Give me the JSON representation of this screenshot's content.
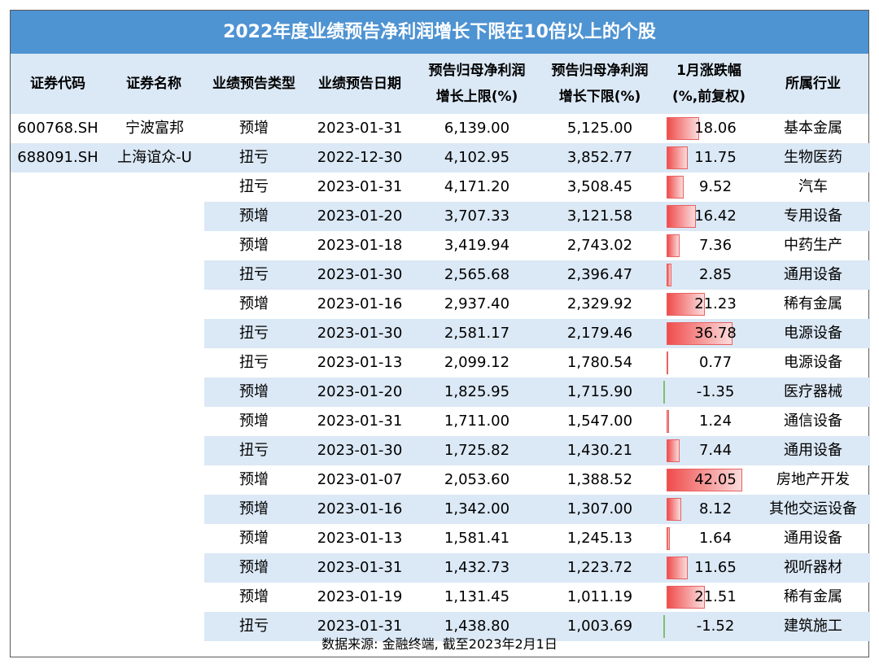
{
  "title": "2022年度业绩预告净利润增长下限在10倍以上的个股",
  "headers": {
    "code": "证券代码",
    "name": "证券名称",
    "type": "业绩预告类型",
    "date": "业绩预告日期",
    "upper_line1": "预告归母净利润",
    "upper_line2": "增长上限(%)",
    "lower_line1": "预告归母净利润",
    "lower_line2": "增长下限(%)",
    "change_line1": "1月涨跌幅",
    "change_line2": "(%,前复权)",
    "industry": "所属行业"
  },
  "rows": [
    {
      "code": "600768.SH",
      "name": "宁波富邦",
      "type": "预增",
      "date": "2023-01-31",
      "upper": "6,139.00",
      "lower": "5,125.00",
      "change": "18.06",
      "change_value": 18.06,
      "industry": "基本金属"
    },
    {
      "code": "688091.SH",
      "name": "上海谊众-U",
      "type": "扭亏",
      "date": "2022-12-30",
      "upper": "4,102.95",
      "lower": "3,852.77",
      "change": "11.75",
      "change_value": 11.75,
      "industry": "生物医药"
    },
    {
      "code": "",
      "name": "",
      "type": "扭亏",
      "date": "2023-01-31",
      "upper": "4,171.20",
      "lower": "3,508.45",
      "change": "9.52",
      "change_value": 9.52,
      "industry": "汽车"
    },
    {
      "code": "",
      "name": "",
      "type": "预增",
      "date": "2023-01-20",
      "upper": "3,707.33",
      "lower": "3,121.58",
      "change": "16.42",
      "change_value": 16.42,
      "industry": "专用设备"
    },
    {
      "code": "",
      "name": "",
      "type": "预增",
      "date": "2023-01-18",
      "upper": "3,419.94",
      "lower": "2,743.02",
      "change": "7.36",
      "change_value": 7.36,
      "industry": "中药生产"
    },
    {
      "code": "",
      "name": "",
      "type": "扭亏",
      "date": "2023-01-30",
      "upper": "2,565.68",
      "lower": "2,396.47",
      "change": "2.85",
      "change_value": 2.85,
      "industry": "通用设备"
    },
    {
      "code": "",
      "name": "",
      "type": "预增",
      "date": "2023-01-16",
      "upper": "2,937.40",
      "lower": "2,329.92",
      "change": "21.23",
      "change_value": 21.23,
      "industry": "稀有金属"
    },
    {
      "code": "",
      "name": "",
      "type": "扭亏",
      "date": "2023-01-30",
      "upper": "2,581.17",
      "lower": "2,179.46",
      "change": "36.78",
      "change_value": 36.78,
      "industry": "电源设备"
    },
    {
      "code": "",
      "name": "",
      "type": "扭亏",
      "date": "2023-01-13",
      "upper": "2,099.12",
      "lower": "1,780.54",
      "change": "0.77",
      "change_value": 0.77,
      "industry": "电源设备"
    },
    {
      "code": "",
      "name": "",
      "type": "预增",
      "date": "2023-01-20",
      "upper": "1,825.95",
      "lower": "1,715.90",
      "change": "-1.35",
      "change_value": -1.35,
      "industry": "医疗器械"
    },
    {
      "code": "",
      "name": "",
      "type": "预增",
      "date": "2023-01-31",
      "upper": "1,711.00",
      "lower": "1,547.00",
      "change": "1.24",
      "change_value": 1.24,
      "industry": "通信设备"
    },
    {
      "code": "",
      "name": "",
      "type": "扭亏",
      "date": "2023-01-30",
      "upper": "1,725.82",
      "lower": "1,430.21",
      "change": "7.44",
      "change_value": 7.44,
      "industry": "通用设备"
    },
    {
      "code": "",
      "name": "",
      "type": "预增",
      "date": "2023-01-07",
      "upper": "2,053.60",
      "lower": "1,388.52",
      "change": "42.05",
      "change_value": 42.05,
      "industry": "房地产开发"
    },
    {
      "code": "",
      "name": "",
      "type": "预增",
      "date": "2023-01-16",
      "upper": "1,342.00",
      "lower": "1,307.00",
      "change": "8.12",
      "change_value": 8.12,
      "industry": "其他交运设备"
    },
    {
      "code": "",
      "name": "",
      "type": "预增",
      "date": "2023-01-13",
      "upper": "1,581.41",
      "lower": "1,245.13",
      "change": "1.64",
      "change_value": 1.64,
      "industry": "通用设备"
    },
    {
      "code": "",
      "name": "",
      "type": "预增",
      "date": "2023-01-31",
      "upper": "1,432.73",
      "lower": "1,223.72",
      "change": "11.65",
      "change_value": 11.65,
      "industry": "视听器材"
    },
    {
      "code": "",
      "name": "",
      "type": "预增",
      "date": "2023-01-19",
      "upper": "1,131.45",
      "lower": "1,011.19",
      "change": "21.51",
      "change_value": 21.51,
      "industry": "稀有金属"
    },
    {
      "code": "",
      "name": "",
      "type": "扭亏",
      "date": "2023-01-31",
      "upper": "1,438.80",
      "lower": "1,003.69",
      "change": "-1.52",
      "change_value": -1.52,
      "industry": "建筑施工"
    }
  ],
  "footer": "数据来源: 金融终端, 截至2023年2月1日",
  "colors": {
    "header_bg": "#4e93d2",
    "band_bg": "#dbe8f5",
    "bar_positive": "#f04c4c",
    "bar_negative": "#7fbf6f"
  }
}
